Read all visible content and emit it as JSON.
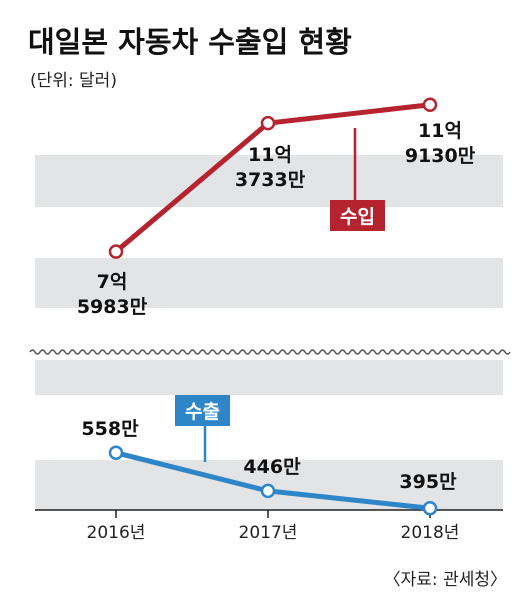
{
  "chart_data": {
    "type": "line",
    "title": "대일본 자동차 수출입 현황",
    "subtitle": "(단위: 달러)",
    "source": "〈자료: 관세청〉",
    "categories": [
      "2016년",
      "2017년",
      "2018년"
    ],
    "series": [
      {
        "name": "수입",
        "color": "#b5242e",
        "values": [
          75983,
          113733,
          119130
        ],
        "value_labels": [
          "7억\n5983만",
          "11억\n3733만",
          "11억 9130만"
        ],
        "ylim": [
          50000,
          122000
        ]
      },
      {
        "name": "수출",
        "color": "#2e86c8",
        "values": [
          558,
          446,
          395
        ],
        "value_labels": [
          "558만",
          "446만",
          "395만"
        ],
        "ylim": [
          390,
          830
        ]
      }
    ]
  }
}
